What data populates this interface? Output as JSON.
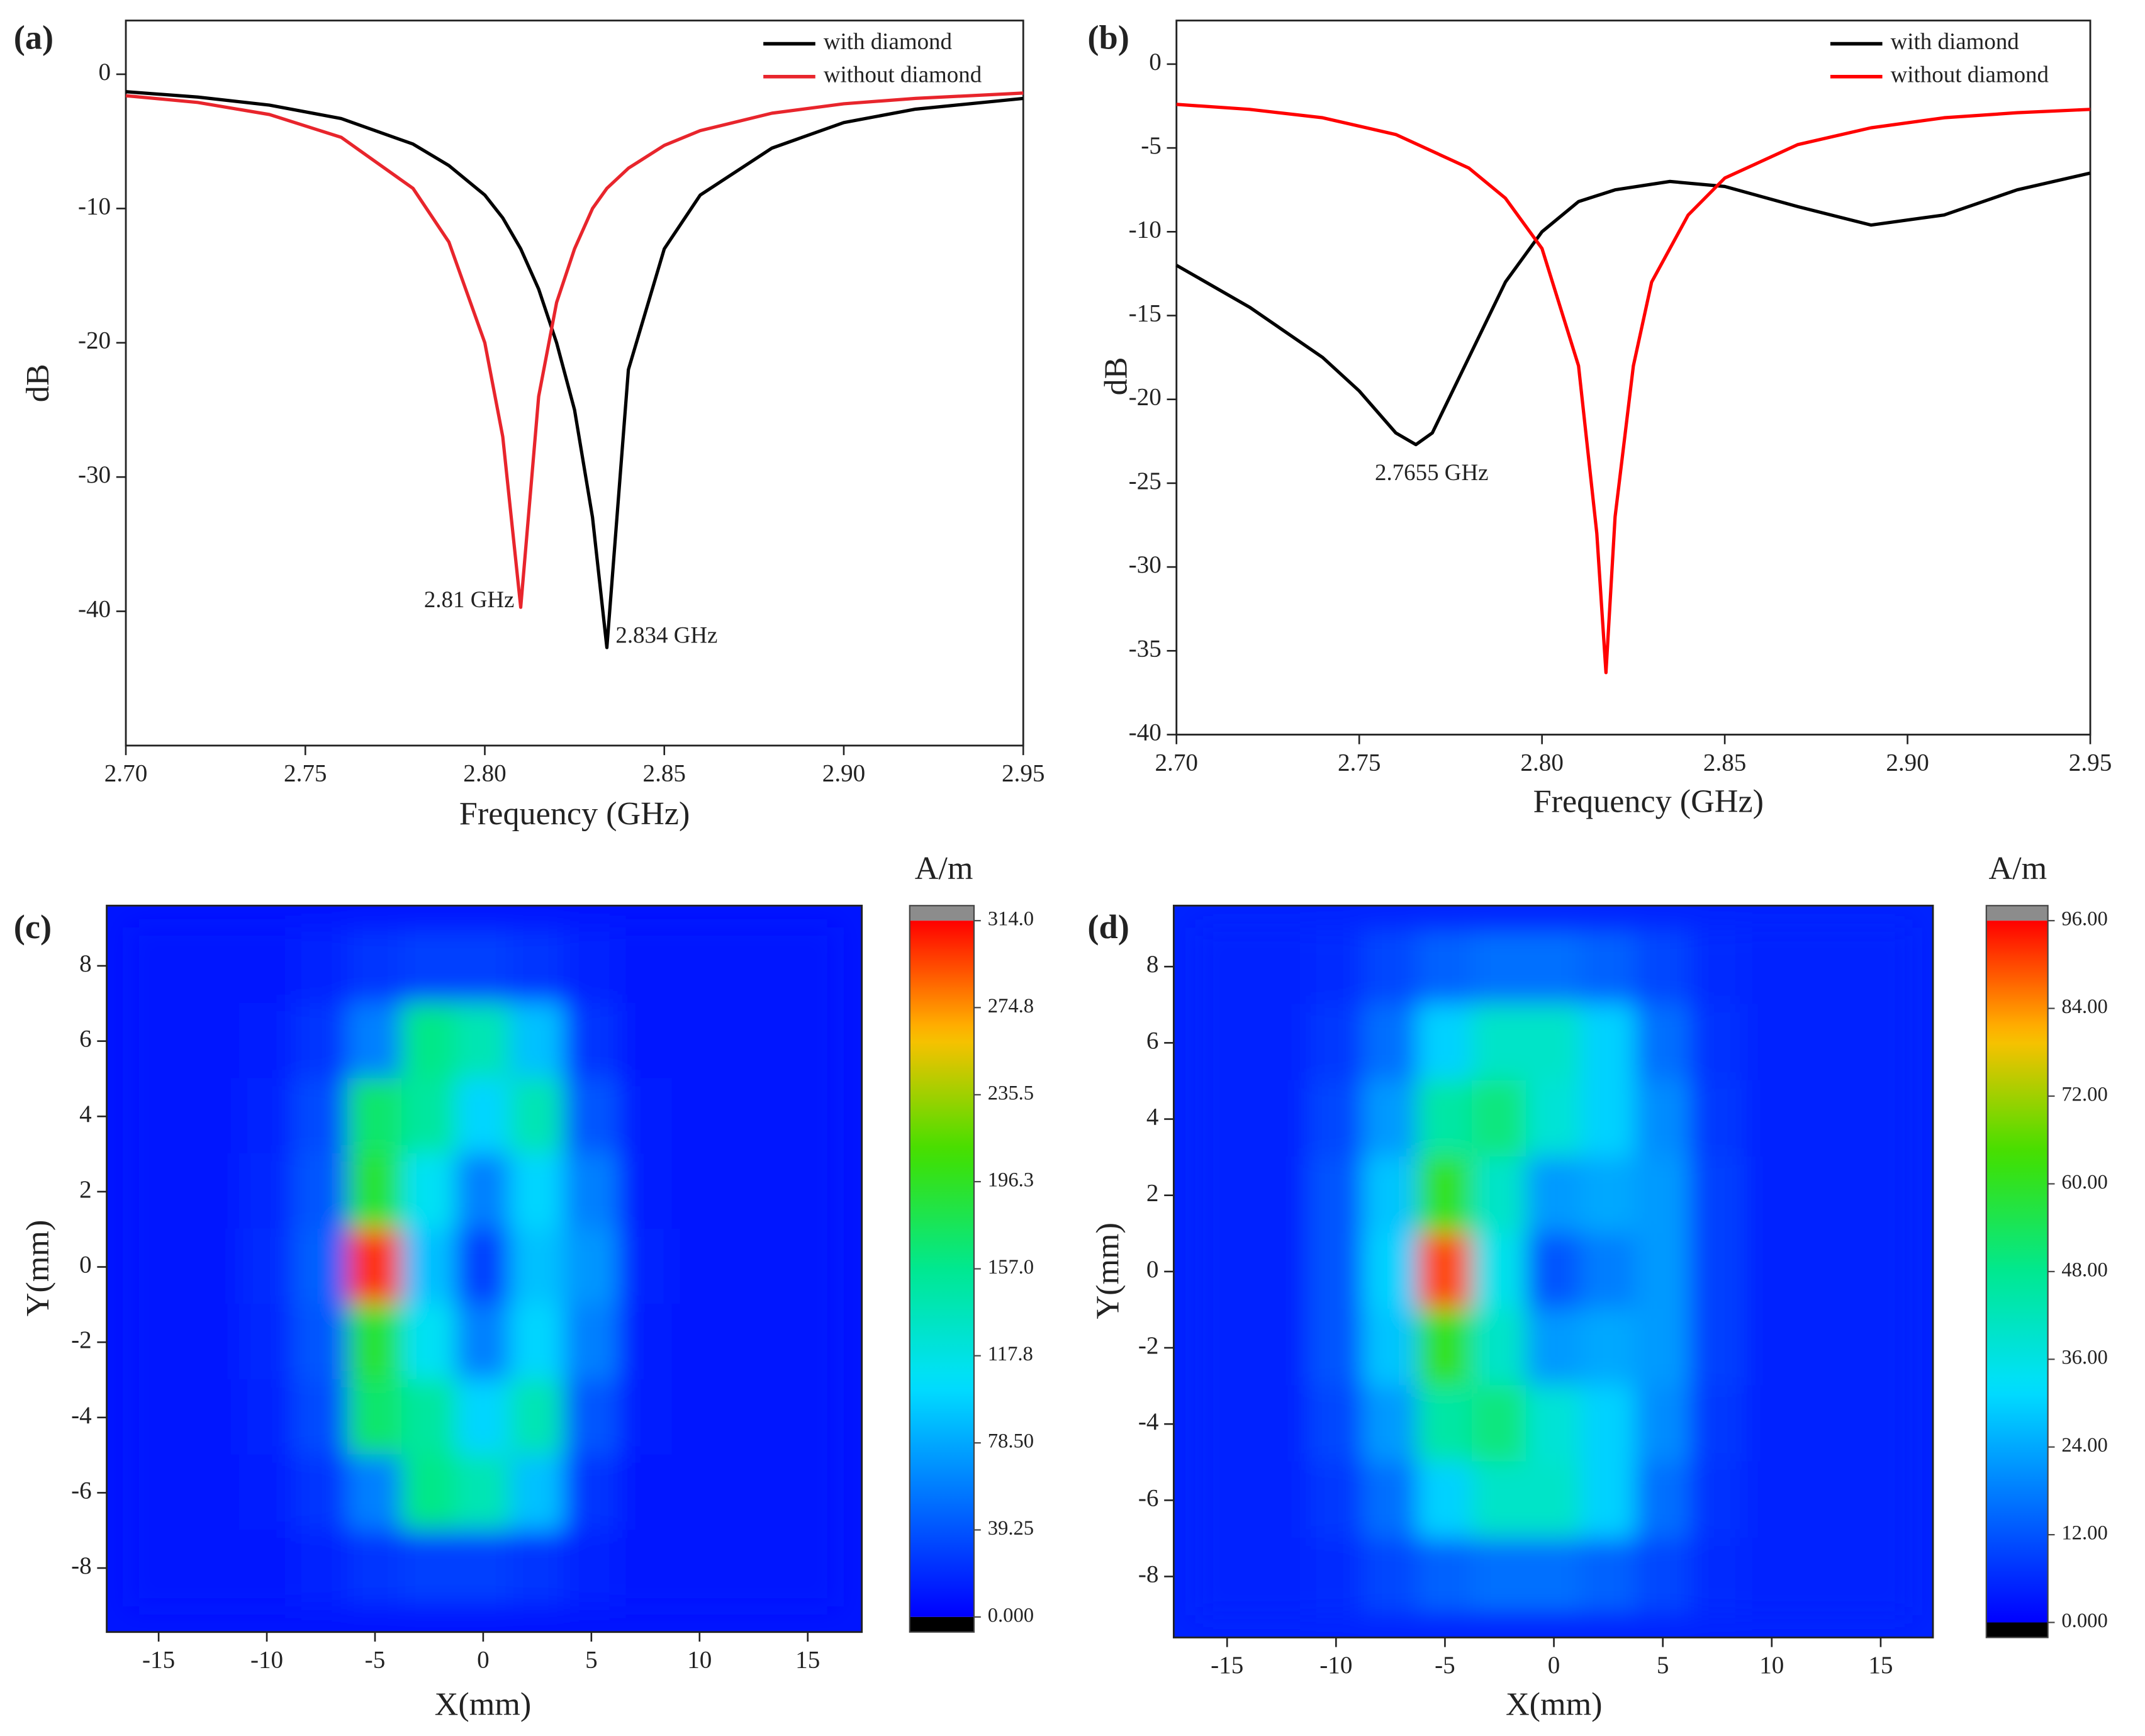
{
  "chart_data": [
    {
      "type": "line",
      "label": "(a)",
      "xlabel": "Frequency (GHz)",
      "ylabel": "dB",
      "legend": "upper right",
      "xlim": [
        2.7,
        2.95
      ],
      "ylim": [
        -50,
        4
      ],
      "xticks": [
        {
          "value": 2.7,
          "label": "2.70"
        },
        2.75,
        {
          "value": 2.8,
          "label": "2.80"
        },
        2.85,
        {
          "value": 2.9,
          "label": "2.90"
        },
        2.95
      ],
      "yticks": [
        0,
        -10,
        -20,
        -30,
        -40
      ],
      "annotations": [
        "2.81 GHz",
        "2.834 GHz"
      ],
      "series": [
        {
          "name": "with diamond",
          "color": "#000000",
          "x": [
            2.7,
            2.72,
            2.74,
            2.76,
            2.78,
            2.79,
            2.8,
            2.805,
            2.81,
            2.815,
            2.82,
            2.825,
            2.83,
            2.834,
            2.84,
            2.85,
            2.86,
            2.88,
            2.9,
            2.92,
            2.95
          ],
          "values": [
            -1.3,
            -1.7,
            -2.3,
            -3.3,
            -5.2,
            -6.8,
            -9.0,
            -10.7,
            -13,
            -16,
            -20,
            -25,
            -33,
            -42.7,
            -22,
            -13,
            -9,
            -5.5,
            -3.6,
            -2.6,
            -1.8
          ]
        },
        {
          "name": "without diamond",
          "color": "#e8252c",
          "x": [
            2.7,
            2.72,
            2.74,
            2.76,
            2.78,
            2.79,
            2.8,
            2.805,
            2.81,
            2.815,
            2.82,
            2.825,
            2.83,
            2.834,
            2.84,
            2.85,
            2.86,
            2.88,
            2.9,
            2.92,
            2.95
          ],
          "values": [
            -1.6,
            -2.1,
            -3.0,
            -4.7,
            -8.5,
            -12.5,
            -20,
            -27,
            -39.7,
            -24,
            -17,
            -13,
            -10,
            -8.5,
            -7,
            -5.3,
            -4.2,
            -2.9,
            -2.2,
            -1.8,
            -1.4
          ]
        }
      ]
    },
    {
      "type": "line",
      "label": "(b)",
      "xlabel": "Frequency (GHz)",
      "ylabel": "dB",
      "legend": "upper right",
      "xlim": [
        2.7,
        2.95
      ],
      "ylim": [
        -40,
        2.6
      ],
      "xticks": [
        {
          "value": 2.7,
          "label": "2.70"
        },
        2.75,
        {
          "value": 2.8,
          "label": "2.80"
        },
        2.85,
        {
          "value": 2.9,
          "label": "2.90"
        },
        2.95
      ],
      "yticks": [
        0,
        -5,
        -10,
        -15,
        -20,
        -25,
        -30,
        -35,
        -40
      ],
      "annotations": [
        "2.7655 GHz"
      ],
      "series": [
        {
          "name": "with diamond",
          "color": "#000000",
          "x": [
            2.7,
            2.72,
            2.74,
            2.75,
            2.76,
            2.7655,
            2.77,
            2.78,
            2.79,
            2.8,
            2.81,
            2.82,
            2.835,
            2.85,
            2.87,
            2.89,
            2.91,
            2.93,
            2.95
          ],
          "values": [
            -12,
            -14.5,
            -17.5,
            -19.5,
            -22,
            -22.7,
            -22,
            -17.5,
            -13,
            -10,
            -8.2,
            -7.5,
            -7.0,
            -7.3,
            -8.5,
            -9.6,
            -9.0,
            -7.5,
            -6.5
          ]
        },
        {
          "name": "without diamond",
          "color": "#ff0000",
          "x": [
            2.7,
            2.72,
            2.74,
            2.76,
            2.78,
            2.79,
            2.8,
            2.81,
            2.815,
            2.8175,
            2.82,
            2.825,
            2.83,
            2.84,
            2.85,
            2.87,
            2.89,
            2.91,
            2.93,
            2.95
          ],
          "values": [
            -2.4,
            -2.7,
            -3.2,
            -4.2,
            -6.2,
            -8,
            -11,
            -18,
            -28,
            -36.3,
            -27,
            -18,
            -13,
            -9,
            -6.8,
            -4.8,
            -3.8,
            -3.2,
            -2.9,
            -2.7
          ]
        }
      ]
    },
    {
      "type": "heatmap",
      "label": "(c)",
      "xlabel": "X(mm)",
      "ylabel": "Y(mm)",
      "colorbar_title": "A/m",
      "xlim": [
        -17.4,
        17.5
      ],
      "ylim": [
        -9.7,
        9.6
      ],
      "xticks": [
        -15,
        -10,
        -5,
        0,
        5,
        10,
        15
      ],
      "yticks": [
        8,
        6,
        4,
        2,
        0,
        -2,
        -4,
        -6,
        -8
      ],
      "zlim": [
        0,
        314
      ],
      "zticks": [
        {
          "value": 0,
          "label": "0.000"
        },
        {
          "value": 39.25,
          "label": "39.25"
        },
        {
          "value": 78.5,
          "label": "78.50"
        },
        {
          "value": 117.8,
          "label": "117.8"
        },
        {
          "value": 157,
          "label": "157.0"
        },
        {
          "value": 196.3,
          "label": "196.3"
        },
        {
          "value": 235.5,
          "label": "235.5"
        },
        {
          "value": 274.8,
          "label": "274.8"
        },
        {
          "value": 314,
          "label": "314.0"
        }
      ],
      "colorscale": [
        "#0000ff",
        "#0070ff",
        "#00e0ff",
        "#00e890",
        "#40e000",
        "#ffc000",
        "#ff0000"
      ],
      "x": [
        -15,
        -12.5,
        -10,
        -7.5,
        -5,
        -2.5,
        0,
        2.5,
        5,
        7.5,
        10,
        12.5,
        15
      ],
      "y": [
        8,
        6,
        4,
        2,
        0,
        -2,
        -4,
        -6,
        -8
      ],
      "z": [
        [
          10,
          10,
          10,
          15,
          25,
          30,
          30,
          25,
          15,
          10,
          10,
          10,
          10
        ],
        [
          10,
          10,
          12,
          25,
          60,
          160,
          140,
          90,
          25,
          10,
          10,
          10,
          10
        ],
        [
          10,
          10,
          15,
          35,
          170,
          150,
          100,
          140,
          40,
          12,
          10,
          10,
          10
        ],
        [
          10,
          10,
          18,
          40,
          190,
          110,
          60,
          100,
          60,
          12,
          10,
          10,
          10
        ],
        [
          10,
          10,
          20,
          45,
          300,
          90,
          30,
          90,
          70,
          15,
          10,
          10,
          10
        ],
        [
          10,
          10,
          18,
          40,
          190,
          110,
          60,
          100,
          60,
          12,
          10,
          10,
          10
        ],
        [
          10,
          10,
          15,
          35,
          170,
          150,
          100,
          140,
          40,
          12,
          10,
          10,
          10
        ],
        [
          10,
          10,
          12,
          25,
          60,
          160,
          140,
          90,
          25,
          10,
          10,
          10,
          10
        ],
        [
          10,
          10,
          10,
          15,
          25,
          30,
          30,
          25,
          15,
          10,
          10,
          10,
          10
        ]
      ]
    },
    {
      "type": "heatmap",
      "label": "(d)",
      "xlabel": "X(mm)",
      "ylabel": "Y(mm)",
      "colorbar_title": "A/m",
      "xlim": [
        -17.45,
        17.4
      ],
      "ylim": [
        -9.6,
        9.6
      ],
      "xticks": [
        -15,
        -10,
        -5,
        0,
        5,
        10,
        15
      ],
      "yticks": [
        8,
        6,
        4,
        2,
        0,
        -2,
        -4,
        -6,
        -8
      ],
      "zlim": [
        0,
        96
      ],
      "zticks": [
        {
          "value": 0,
          "label": "0.000"
        },
        {
          "value": 12,
          "label": "12.00"
        },
        {
          "value": 24,
          "label": "24.00"
        },
        {
          "value": 36,
          "label": "36.00"
        },
        {
          "value": 48,
          "label": "48.00"
        },
        {
          "value": 60,
          "label": "60.00"
        },
        {
          "value": 72,
          "label": "72.00"
        },
        {
          "value": 84,
          "label": "84.00"
        },
        {
          "value": 96,
          "label": "96.00"
        }
      ],
      "colorscale": [
        "#0000ff",
        "#0070ff",
        "#00e0ff",
        "#00e890",
        "#40e000",
        "#ffc000",
        "#ff0000"
      ],
      "x": [
        -15,
        -12.5,
        -10,
        -7.5,
        -5,
        -2.5,
        0,
        2.5,
        5,
        7.5,
        10,
        12.5,
        15
      ],
      "y": [
        8,
        6,
        4,
        2,
        0,
        -2,
        -4,
        -6,
        -8
      ],
      "z": [
        [
          5,
          5,
          6,
          10,
          14,
          16,
          16,
          14,
          10,
          6,
          5,
          5,
          5
        ],
        [
          5,
          5,
          8,
          16,
          30,
          40,
          40,
          30,
          16,
          7,
          5,
          5,
          5
        ],
        [
          5,
          5,
          10,
          22,
          45,
          50,
          38,
          30,
          20,
          8,
          5,
          5,
          5
        ],
        [
          5,
          5,
          12,
          28,
          60,
          40,
          22,
          24,
          22,
          9,
          5,
          5,
          5
        ],
        [
          5,
          5,
          12,
          30,
          90,
          35,
          12,
          18,
          22,
          9,
          5,
          5,
          5
        ],
        [
          5,
          5,
          12,
          28,
          60,
          40,
          22,
          24,
          22,
          9,
          5,
          5,
          5
        ],
        [
          5,
          5,
          10,
          22,
          45,
          50,
          38,
          30,
          20,
          8,
          5,
          5,
          5
        ],
        [
          5,
          5,
          8,
          16,
          30,
          40,
          40,
          30,
          16,
          7,
          5,
          5,
          5
        ],
        [
          5,
          5,
          6,
          10,
          14,
          16,
          16,
          14,
          10,
          6,
          5,
          5,
          5
        ]
      ]
    }
  ]
}
